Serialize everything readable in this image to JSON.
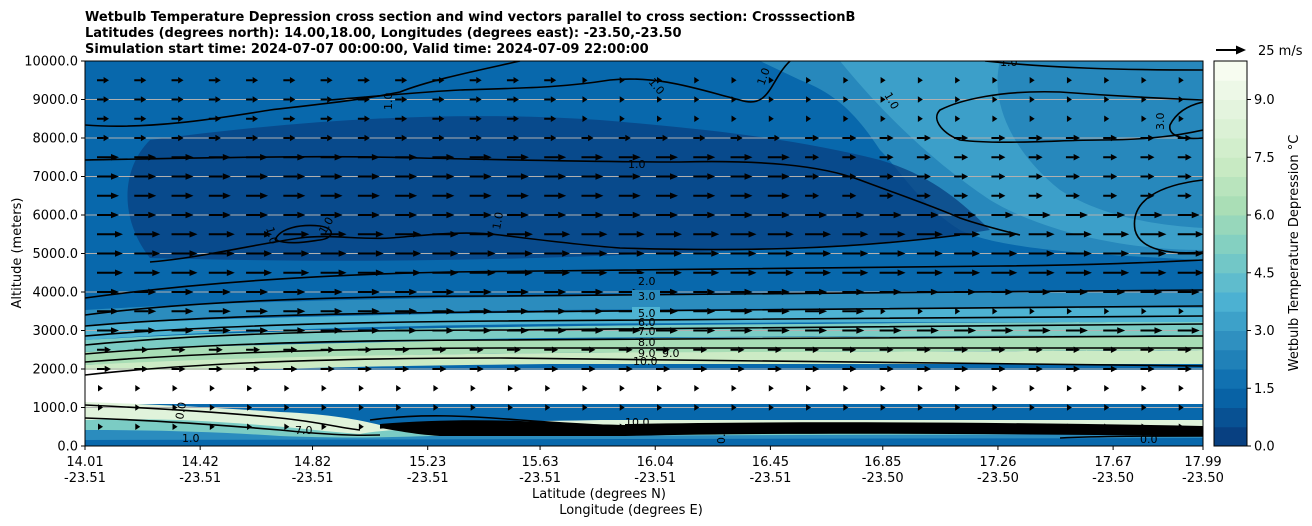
{
  "chart_data": {
    "type": "contour_cross_section",
    "title_lines": [
      "Wetbulb Temperature Depression cross section and wind vectors parallel to cross section: CrosssectionB",
      "Latitudes (degrees north): 14.00,18.00, Longitudes (degrees east): -23.50,-23.50",
      "Simulation start time: 2024-07-07 00:00:00, Valid time: 2024-07-09 22:00:00"
    ],
    "ylabel": "Altitude (meters)",
    "xlabel_lat": "Latitude (degrees N)",
    "xlabel_lon": "Longitude (degrees E)",
    "ylim": [
      0,
      10000
    ],
    "y_ticks": [
      "0.0",
      "1000.0",
      "2000.0",
      "3000.0",
      "4000.0",
      "5000.0",
      "6000.0",
      "7000.0",
      "8000.0",
      "9000.0",
      "10000.0"
    ],
    "x_ticks": [
      {
        "lat": "14.01",
        "lon": "-23.51"
      },
      {
        "lat": "14.42",
        "lon": "-23.51"
      },
      {
        "lat": "14.82",
        "lon": "-23.51"
      },
      {
        "lat": "15.23",
        "lon": "-23.51"
      },
      {
        "lat": "15.63",
        "lon": "-23.51"
      },
      {
        "lat": "16.04",
        "lon": "-23.51"
      },
      {
        "lat": "16.45",
        "lon": "-23.51"
      },
      {
        "lat": "16.85",
        "lon": "-23.50"
      },
      {
        "lat": "17.26",
        "lon": "-23.50"
      },
      {
        "lat": "17.67",
        "lon": "-23.50"
      },
      {
        "lat": "17.99",
        "lon": "-23.50"
      }
    ],
    "grid": "horizontal",
    "colorbar": {
      "label": "Wetbulb Temperature Depression °C",
      "ticks": [
        "0.0",
        "1.5",
        "3.0",
        "4.5",
        "6.0",
        "7.5",
        "9.0"
      ],
      "range": [
        0,
        10
      ],
      "colormap": "GnBu_r"
    },
    "quiver_key": "25 m/s",
    "contour_lines": [
      {
        "label": "2.0",
        "altitude": 4100
      },
      {
        "label": "3.0",
        "altitude": 3800
      },
      {
        "label": "5.0",
        "altitude": 3400
      },
      {
        "label": "6.0",
        "altitude": 3200
      },
      {
        "label": "7.0",
        "altitude": 3000
      },
      {
        "label": "8.0",
        "altitude": 2700
      },
      {
        "label": "9.0",
        "altitude": 2400
      },
      {
        "label": "10.0",
        "altitude": 2200
      }
    ],
    "other_labels": [
      "1.0",
      "1.0",
      "1.0",
      "1.0",
      "1.0",
      "1.0",
      "1.0",
      "1.0",
      "1.0",
      "1.0",
      "3.0",
      "10.0",
      "7.0",
      "1.0",
      "9.0",
      "0.0",
      "0.0",
      "0.0"
    ]
  }
}
